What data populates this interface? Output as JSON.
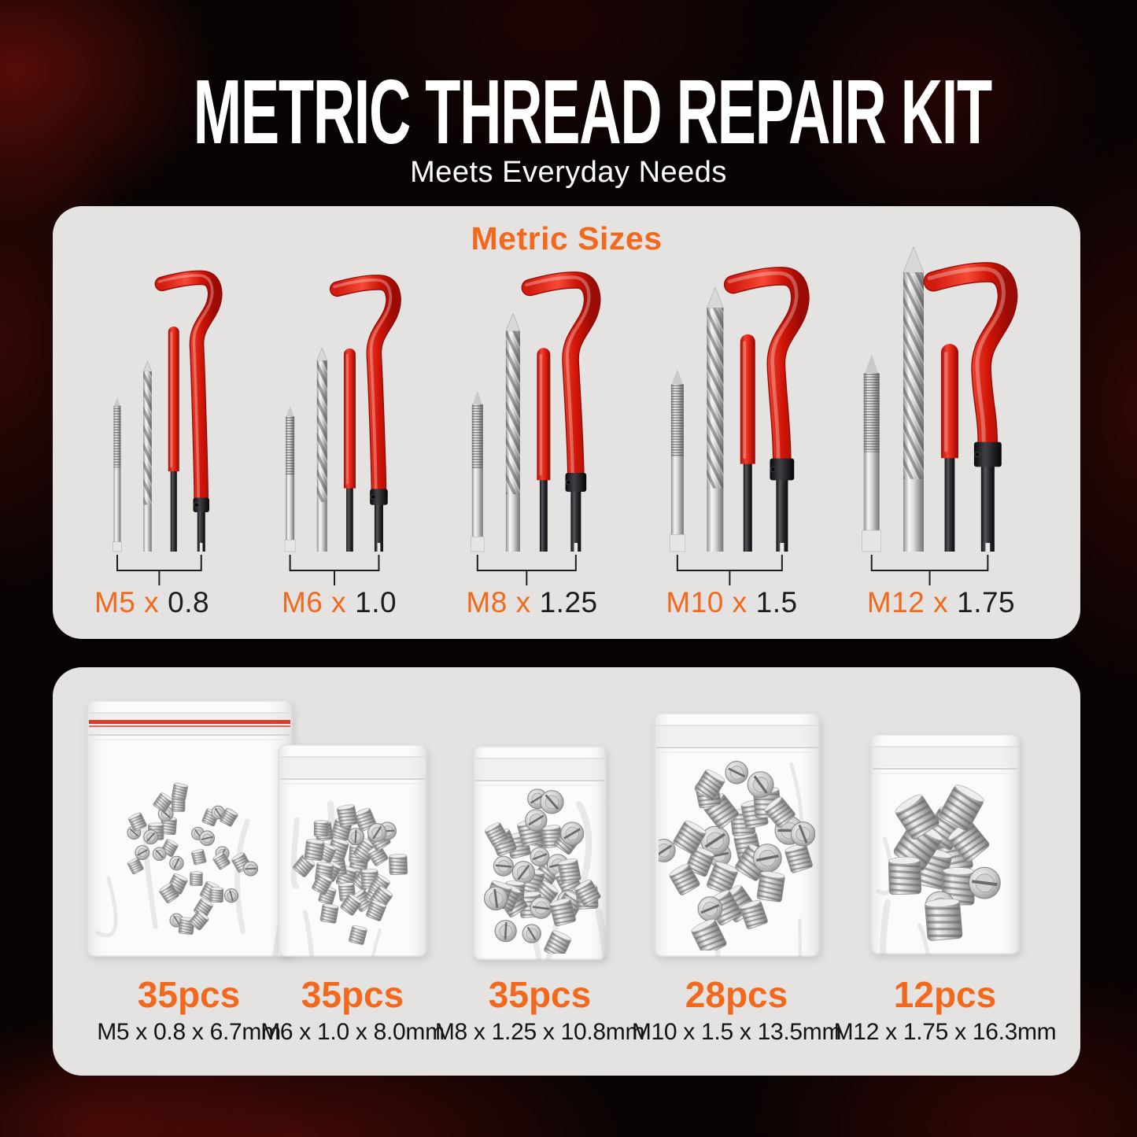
{
  "header": {
    "title": "METRIC THREAD REPAIR KIT",
    "subtitle": "Meets Everyday Needs"
  },
  "colors": {
    "accent_orange": "#F2691E",
    "tool_red": "#E8241B",
    "panel_gray": "#E4E3E1",
    "background_black": "#080303",
    "smoke_red": "#8B120A",
    "bag_zip_red": "#DC3B28",
    "text_black": "#1D1D1D",
    "text_white": "#FFFFFF"
  },
  "sizes": {
    "heading": "Metric Sizes",
    "groups": [
      {
        "name": "M5",
        "label_orange": "M5 x",
        "label_black": "0.8",
        "full_label": "M5 x 0.8"
      },
      {
        "name": "M6",
        "label_orange": "M6 x",
        "label_black": "1.0",
        "full_label": "M6 x 1.0"
      },
      {
        "name": "M8",
        "label_orange": "M8 x",
        "label_black": "1.25",
        "full_label": "M8 x 1.25"
      },
      {
        "name": "M10",
        "label_orange": "M10 x",
        "label_black": "1.5",
        "full_label": "M10 x 1.5"
      },
      {
        "name": "M12",
        "label_orange": "M12 x",
        "label_black": "1.75",
        "full_label": "M12 x 1.75"
      }
    ]
  },
  "contents": {
    "bags": [
      {
        "count": "35pcs",
        "spec": "M5 x 0.8 x 6.7mm"
      },
      {
        "count": "35pcs",
        "spec": "M6 x 1.0 x 8.0mm"
      },
      {
        "count": "35pcs",
        "spec": "M8 x 1.25 x 10.8mm"
      },
      {
        "count": "28pcs",
        "spec": "M10 x 1.5 x 13.5mm"
      },
      {
        "count": "12pcs",
        "spec": "M12 x 1.75 x 16.3mm"
      }
    ]
  }
}
